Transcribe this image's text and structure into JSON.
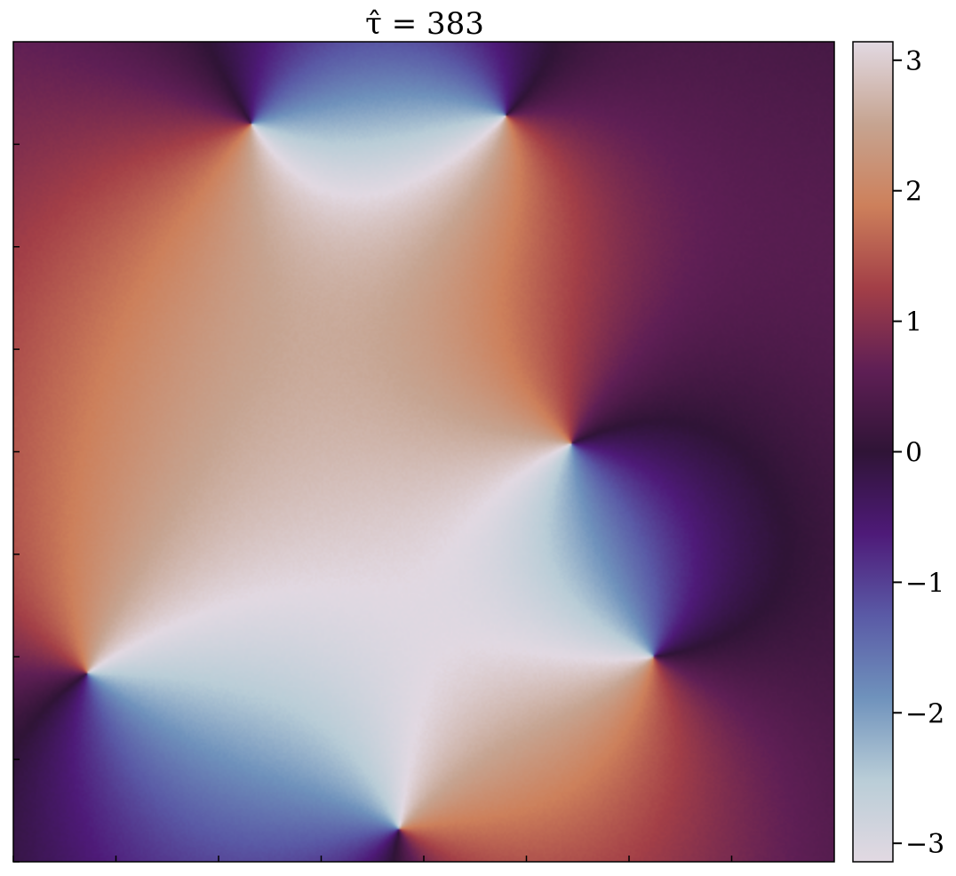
{
  "chart_data": {
    "type": "heatmap",
    "title": "τ̂ = 383",
    "xlabel": "",
    "ylabel": "",
    "colormap": "twilight_shifted",
    "colorbar": {
      "range": [
        -3.1416,
        3.1416
      ],
      "ticks": [
        -3,
        -2,
        -1,
        0,
        1,
        2,
        3
      ],
      "tick_labels": [
        "−3",
        "−2",
        "−1",
        "0",
        "1",
        "2",
        "3"
      ]
    },
    "x_tick_count": 8,
    "y_tick_count": 8,
    "x_tick_labels": [],
    "y_tick_labels": [],
    "vortices": [
      {
        "x": 0.29,
        "y": 0.9,
        "charge": 1
      },
      {
        "x": 0.6,
        "y": 0.91,
        "charge": -1
      },
      {
        "x": 0.68,
        "y": 0.51,
        "charge": 1
      },
      {
        "x": 0.09,
        "y": 0.23,
        "charge": -1
      },
      {
        "x": 0.78,
        "y": 0.25,
        "charge": -1
      },
      {
        "x": 0.47,
        "y": 0.04,
        "charge": 1
      }
    ],
    "colors": {
      "c1": "#e2d9e2",
      "c2": "#c6a491",
      "c3": "#cd805b",
      "c4": "#a33f47",
      "c5": "#5f1f55",
      "c6": "#2f1436",
      "c7": "#4e1a78",
      "c8": "#5a5aa6",
      "c9": "#6f92bc",
      "c10": "#b9cdd7"
    }
  }
}
